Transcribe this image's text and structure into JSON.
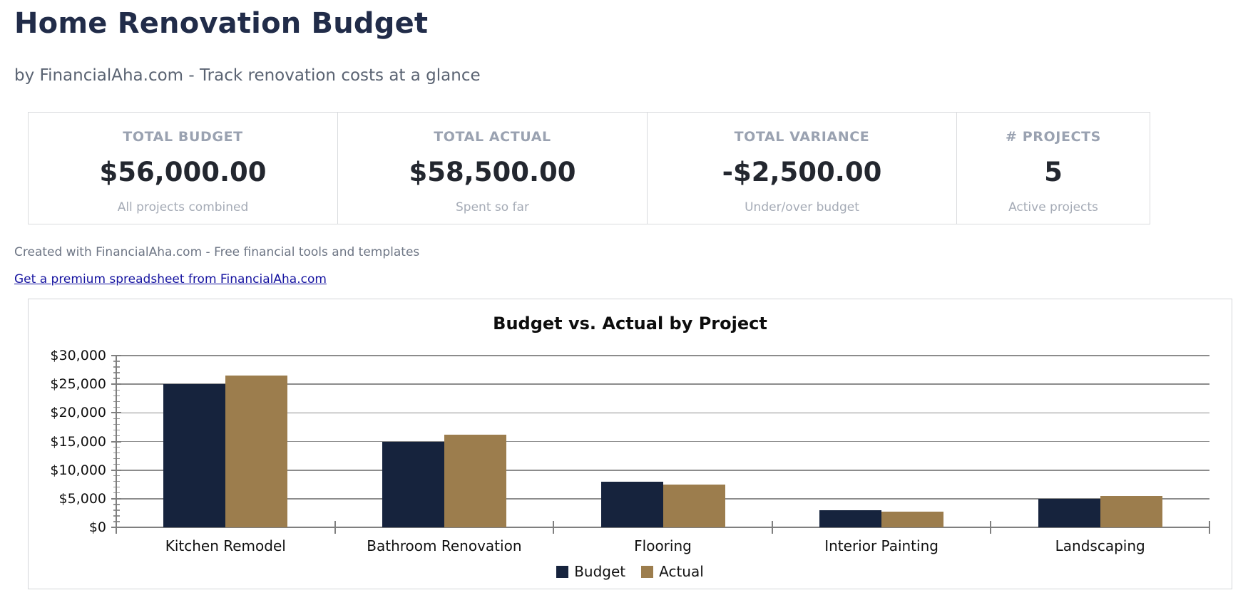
{
  "page": {
    "title": "Home Renovation Budget",
    "subtitle": "by FinancialAha.com - Track renovation costs at a glance",
    "credit_line": "Created with FinancialAha.com - Free financial tools and templates",
    "link_text": "Get a premium spreadsheet from FinancialAha.com"
  },
  "summary_cards": [
    {
      "label": "TOTAL BUDGET",
      "value": "$56,000.00",
      "sublabel": "All projects combined"
    },
    {
      "label": "TOTAL ACTUAL",
      "value": "$58,500.00",
      "sublabel": "Spent so far"
    },
    {
      "label": "TOTAL VARIANCE",
      "value": "-$2,500.00",
      "sublabel": "Under/over budget"
    },
    {
      "label": "# PROJECTS",
      "value": "5",
      "sublabel": "Active projects"
    }
  ],
  "chart_data": {
    "type": "bar",
    "title": "Budget vs. Actual by Project",
    "categories": [
      "Kitchen Remodel",
      "Bathroom Renovation",
      "Flooring",
      "Interior Painting",
      "Landscaping"
    ],
    "series": [
      {
        "name": "Budget",
        "color": "#16233d",
        "values": [
          25000,
          15000,
          8000,
          3000,
          5000
        ]
      },
      {
        "name": "Actual",
        "color": "#9c7d4d",
        "values": [
          26500,
          16200,
          7500,
          2800,
          5500
        ]
      }
    ],
    "xlabel": "",
    "ylabel": "",
    "ylim": [
      0,
      30000
    ],
    "ytick_step": 5000,
    "ytick_minor_step": 1000,
    "ytick_labels": [
      "$0",
      "$5,000",
      "$10,000",
      "$15,000",
      "$20,000",
      "$25,000",
      "$30,000"
    ],
    "grid": true,
    "legend_position": "bottom"
  },
  "colors": {
    "title_text": "#212c49",
    "budget_bar": "#16233d",
    "actual_bar": "#9c7d4d",
    "link": "#1513a0",
    "gridline": "#8c8c8c"
  }
}
